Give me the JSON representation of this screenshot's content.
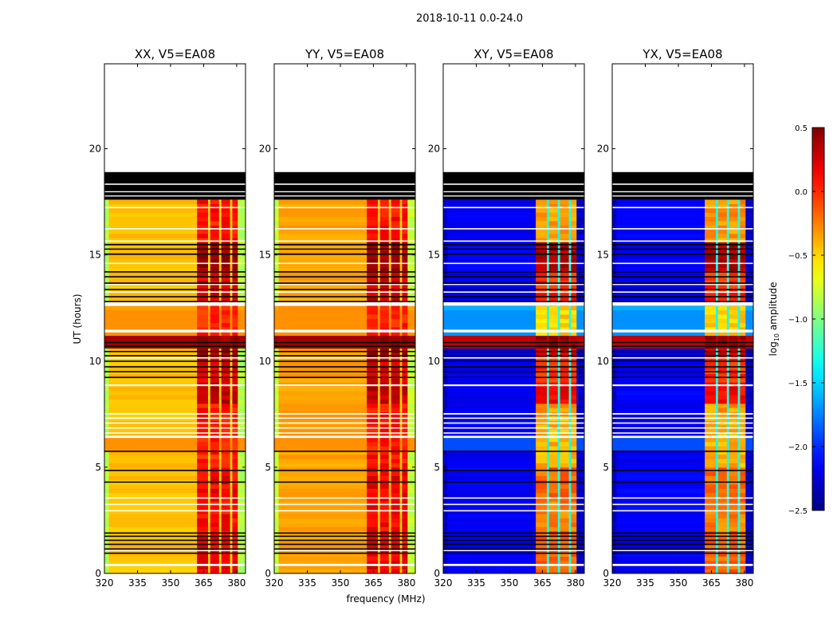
{
  "chart_data": {
    "type": "heatmap",
    "suptitle": "2018-10-11 0.0-24.0",
    "xlabel": "frequency (MHz)",
    "ylabel": "UT (hours)",
    "xlim": [
      320,
      384
    ],
    "ylim": [
      0,
      24
    ],
    "xticks": [
      "320",
      "335",
      "350",
      "365",
      "380"
    ],
    "xtick_values": [
      320,
      335,
      350,
      365,
      380
    ],
    "yticks": [
      "0",
      "5",
      "10",
      "15",
      "20"
    ],
    "ytick_values": [
      0,
      5,
      10,
      15,
      20
    ],
    "colorbar": {
      "label_main": "log",
      "label_sub": "10",
      "label_rest": " amplitude",
      "range": [
        -2.5,
        0.5
      ],
      "ticks": [
        "0.5",
        "0.0",
        "−0.5",
        "−1.0",
        "−1.5",
        "−2.0",
        "−2.5"
      ],
      "tick_values": [
        0.5,
        0.0,
        -0.5,
        -1.0,
        -1.5,
        -2.0,
        -2.5
      ],
      "colormap": "jet"
    },
    "data_end_hours": 17.6,
    "time_bin_hours": 0.2,
    "freq_segments": [
      [
        320,
        322,
        "edge"
      ],
      [
        322,
        362,
        "base"
      ],
      [
        362,
        367,
        "rfi"
      ],
      [
        367,
        368,
        "gap"
      ],
      [
        368,
        372,
        "rfi"
      ],
      [
        372,
        373,
        "gap"
      ],
      [
        373,
        377,
        "rfi"
      ],
      [
        377,
        378,
        "gap"
      ],
      [
        378,
        380.5,
        "rfi"
      ],
      [
        380.5,
        384,
        "edge"
      ]
    ],
    "rfi_strength_by_time": [
      [
        0,
        2,
        0.6
      ],
      [
        2,
        3.5,
        0.55
      ],
      [
        3.5,
        5,
        0.6
      ],
      [
        5,
        7.5,
        0.45
      ],
      [
        7.5,
        8,
        0.5
      ],
      [
        8,
        9,
        0.8
      ],
      [
        9,
        10.2,
        0.7
      ],
      [
        10.2,
        10.5,
        0.9
      ],
      [
        10.5,
        11.2,
        1.0
      ],
      [
        11.2,
        12.6,
        0.4
      ],
      [
        12.6,
        13.2,
        0.75
      ],
      [
        13.2,
        14.1,
        0.7
      ],
      [
        14.1,
        15.6,
        0.95
      ],
      [
        15.6,
        17.6,
        0.5
      ]
    ],
    "broadband_events": [
      [
        10.5,
        11.2,
        0.4,
        0.3
      ],
      [
        11.2,
        12.4,
        -0.3,
        -1.7
      ],
      [
        5.8,
        6.5,
        -0.3,
        -1.9
      ],
      [
        12.1,
        12.6,
        -0.35,
        -1.6
      ]
    ],
    "panels": [
      {
        "title": "XX, V5=EA08",
        "base": -0.45,
        "edge": -0.85,
        "gap": -0.5,
        "rfi_lo": -0.3,
        "rfi_hi": 0.45
      },
      {
        "title": "YY, V5=EA08",
        "base": -0.35,
        "edge": -0.8,
        "gap": -0.45,
        "rfi_lo": -0.25,
        "rfi_hi": 0.45
      },
      {
        "title": "XY, V5=EA08",
        "base": -2.15,
        "edge": -2.3,
        "gap": -1.3,
        "rfi_lo": -1.1,
        "rfi_hi": 0.45
      },
      {
        "title": "YX, V5=EA08",
        "base": -2.15,
        "edge": -2.3,
        "gap": -1.3,
        "rfi_lo": -1.1,
        "rfi_hi": 0.45
      }
    ],
    "flagged_intervals_hours": [
      [
        17.6,
        18.9
      ],
      [
        15.45,
        15.52
      ],
      [
        15.25,
        15.3
      ],
      [
        15.0,
        15.07
      ],
      [
        14.17,
        14.23
      ],
      [
        13.94,
        14.0
      ],
      [
        13.64,
        13.7
      ],
      [
        13.34,
        13.4
      ],
      [
        13.0,
        13.06
      ],
      [
        12.77,
        12.83
      ],
      [
        10.85,
        10.9
      ],
      [
        10.66,
        10.72
      ],
      [
        10.42,
        10.48
      ],
      [
        10.22,
        10.28
      ],
      [
        9.96,
        10.02
      ],
      [
        9.7,
        9.76
      ],
      [
        9.47,
        9.53
      ],
      [
        9.2,
        9.26
      ],
      [
        5.72,
        5.78
      ],
      [
        4.82,
        4.88
      ],
      [
        4.27,
        4.33
      ],
      [
        1.87,
        1.93
      ],
      [
        1.72,
        1.78
      ],
      [
        1.53,
        1.59
      ],
      [
        1.34,
        1.4
      ],
      [
        1.12,
        1.18
      ],
      [
        0.92,
        0.98
      ]
    ],
    "gap_intervals_hours": [
      [
        18.3,
        18.36
      ],
      [
        17.95,
        18.0
      ],
      [
        17.75,
        17.8
      ],
      [
        17.2,
        17.26
      ],
      [
        16.2,
        16.26
      ],
      [
        15.62,
        15.68
      ],
      [
        14.57,
        14.63
      ],
      [
        13.58,
        13.63
      ],
      [
        13.22,
        13.28
      ],
      [
        12.6,
        12.78
      ],
      [
        11.35,
        11.48
      ],
      [
        10.12,
        10.18
      ],
      [
        8.82,
        8.9
      ],
      [
        7.48,
        7.55
      ],
      [
        7.28,
        7.34
      ],
      [
        7.05,
        7.11
      ],
      [
        6.82,
        6.88
      ],
      [
        6.58,
        6.64
      ],
      [
        6.38,
        6.48
      ],
      [
        3.52,
        3.58
      ],
      [
        3.22,
        3.28
      ],
      [
        2.92,
        2.98
      ],
      [
        1.05,
        1.1
      ],
      [
        0.35,
        0.45
      ]
    ]
  }
}
